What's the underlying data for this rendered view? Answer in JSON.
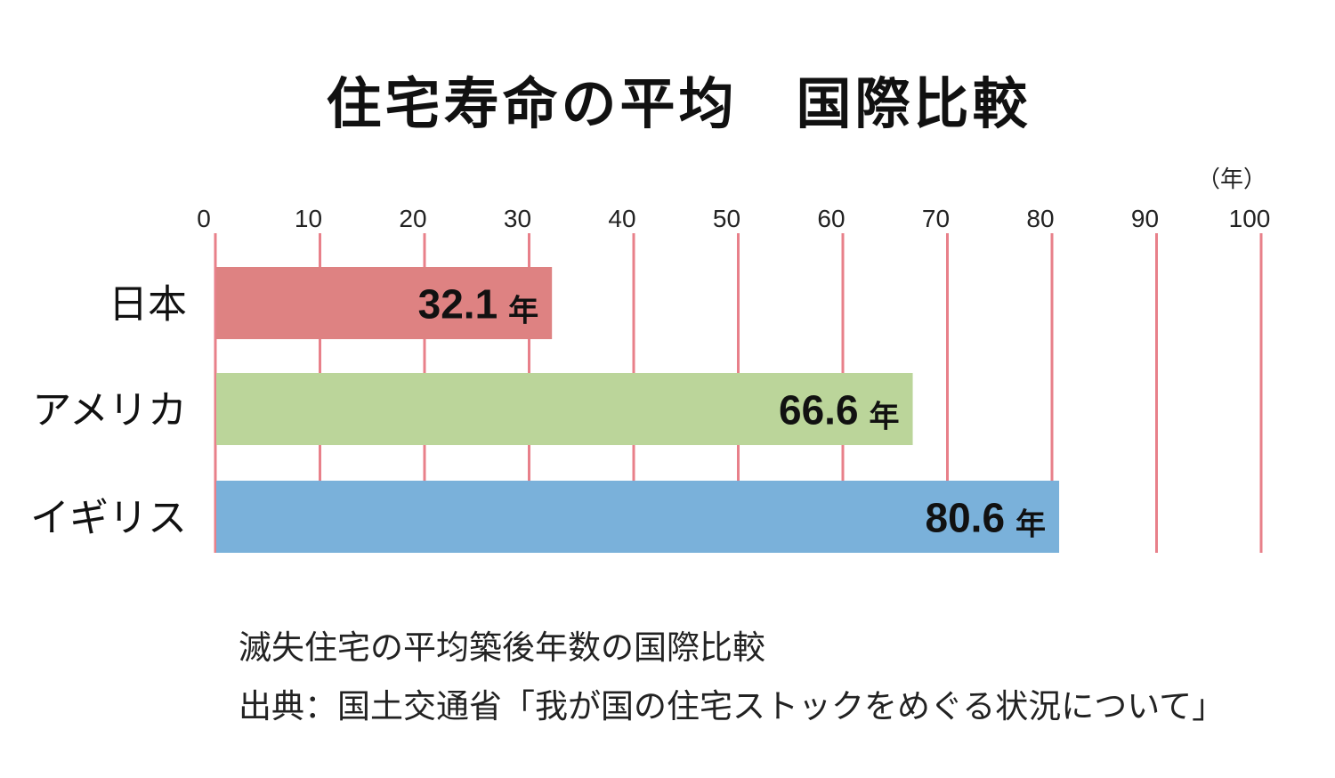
{
  "chart_data": {
    "type": "bar",
    "orientation": "horizontal",
    "title": "住宅寿命の平均　国際比較",
    "unit_label": "（年）",
    "categories": [
      "日本",
      "アメリカ",
      "イギリス"
    ],
    "values": [
      32.1,
      66.6,
      80.6
    ],
    "data_labels": [
      "32.1",
      "66.6",
      "80.6"
    ],
    "data_label_unit": "年",
    "xlim": [
      0,
      100
    ],
    "x_ticks": [
      0,
      10,
      20,
      30,
      40,
      50,
      60,
      70,
      80,
      90,
      100
    ],
    "x_axis_position": "top",
    "grid": true,
    "colors": {
      "bars": [
        "#de8282",
        "#bbd59a",
        "#7ab1da"
      ],
      "grid": "#e8808a"
    }
  },
  "caption": {
    "line1": "滅失住宅の平均築後年数の国際比較",
    "line2": "出典：国土交通省「我が国の住宅ストックをめぐる状況について」"
  }
}
